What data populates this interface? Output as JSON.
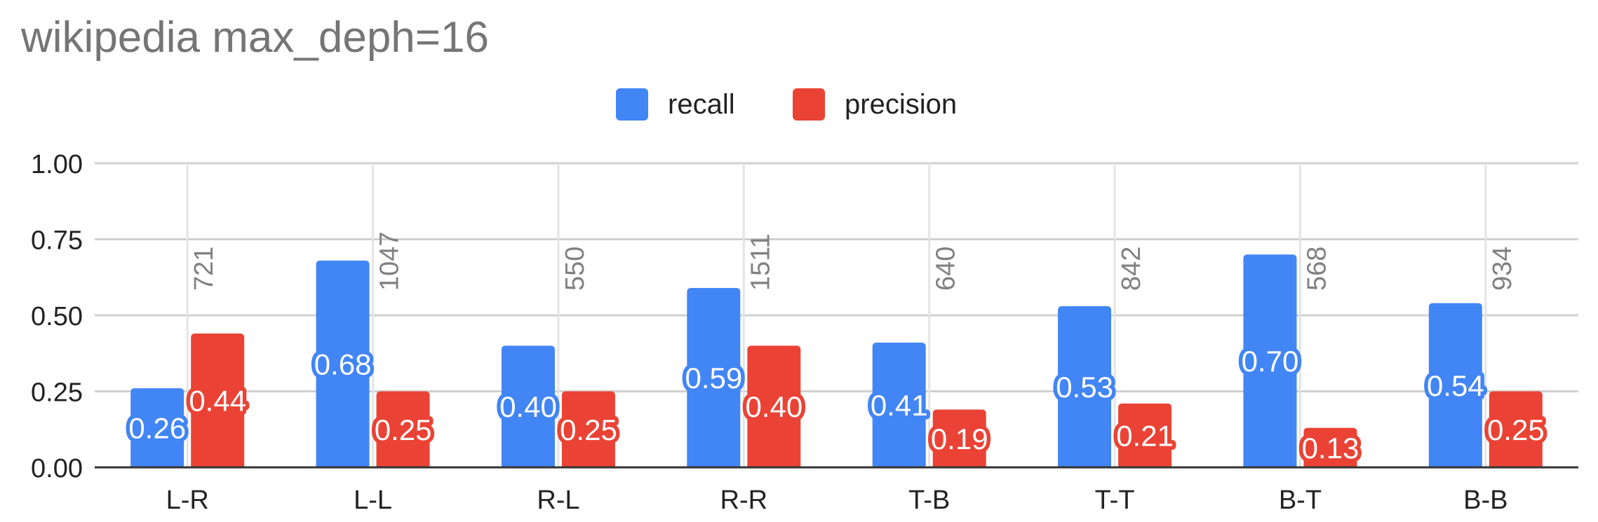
{
  "chart_data": {
    "type": "bar",
    "title": "wikipedia max_deph=16",
    "xlabel": "",
    "ylabel": "",
    "categories": [
      "L-R",
      "L-L",
      "R-L",
      "R-R",
      "T-B",
      "T-T",
      "B-T",
      "B-B"
    ],
    "series": [
      {
        "name": "recall",
        "color": "#4285f4",
        "values": [
          0.26,
          0.68,
          0.4,
          0.59,
          0.41,
          0.53,
          0.7,
          0.54
        ],
        "labels": [
          "0.26",
          "0.68",
          "0.40",
          "0.59",
          "0.41",
          "0.53",
          "0.70",
          "0.54"
        ]
      },
      {
        "name": "precision",
        "color": "#ea4335",
        "values": [
          0.44,
          0.25,
          0.25,
          0.4,
          0.19,
          0.21,
          0.13,
          0.25
        ],
        "labels": [
          "0.44",
          "0.25",
          "0.25",
          "0.40",
          "0.19",
          "0.21",
          "0.13",
          "0.25"
        ]
      }
    ],
    "counts": [
      "721",
      "1047",
      "550",
      "1511",
      "640",
      "842",
      "568",
      "934"
    ],
    "ylim": [
      0,
      1
    ],
    "yticks": [
      "0.00",
      "0.25",
      "0.50",
      "0.75",
      "1.00"
    ],
    "grid": true,
    "legend_position": "top-center"
  },
  "colors": {
    "title": "#757575",
    "grid": "#d0d0d0",
    "axis": "#333333",
    "count_label": "#808080"
  }
}
